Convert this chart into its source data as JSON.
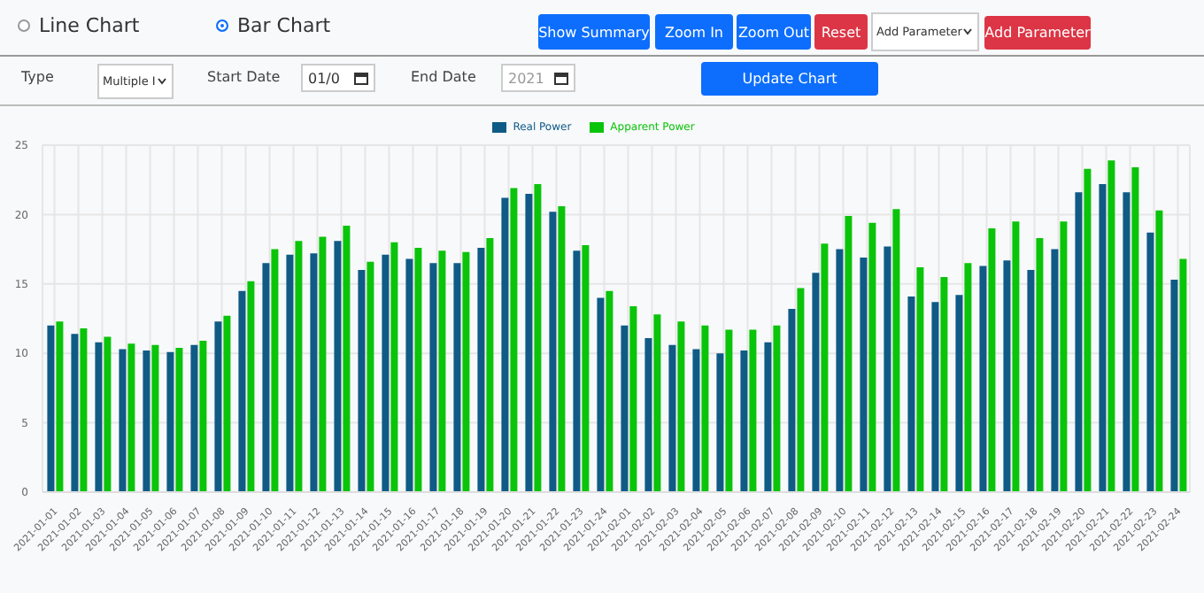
{
  "chart_data": {
    "type": "bar",
    "categories": [
      "2021-01-01",
      "2021-01-02",
      "2021-01-03",
      "2021-01-04",
      "2021-01-05",
      "2021-01-06",
      "2021-01-07",
      "2021-01-08",
      "2021-01-09",
      "2021-01-10",
      "2021-01-11",
      "2021-01-12",
      "2021-01-13",
      "2021-01-14",
      "2021-01-15",
      "2021-01-16",
      "2021-01-17",
      "2021-01-18",
      "2021-01-19",
      "2021-01-20",
      "2021-01-21",
      "2021-01-22",
      "2021-01-23",
      "2021-01-24",
      "2021-02-01",
      "2021-02-02",
      "2021-02-03",
      "2021-02-04",
      "2021-02-05",
      "2021-02-06",
      "2021-02-07",
      "2021-02-08",
      "2021-02-09",
      "2021-02-10",
      "2021-02-11",
      "2021-02-12",
      "2021-02-13",
      "2021-02-14",
      "2021-02-15",
      "2021-02-16",
      "2021-02-17",
      "2021-02-18",
      "2021-02-19",
      "2021-02-20",
      "2021-02-21",
      "2021-02-22",
      "2021-02-23",
      "2021-02-24"
    ],
    "series": [
      {
        "name": "Real Power",
        "color": "#0f5b86",
        "values": [
          12.0,
          11.4,
          10.8,
          10.3,
          10.2,
          10.1,
          10.6,
          12.3,
          14.5,
          16.5,
          17.1,
          17.2,
          18.1,
          16.0,
          17.1,
          16.8,
          16.5,
          16.5,
          17.6,
          21.2,
          21.5,
          20.2,
          17.4,
          14.0,
          12.0,
          11.1,
          10.6,
          10.3,
          10.0,
          10.2,
          10.8,
          13.2,
          15.8,
          17.5,
          16.9,
          17.7,
          14.1,
          13.7,
          14.2,
          16.3,
          16.7,
          16.0,
          17.5,
          21.6,
          22.2,
          21.6,
          18.7,
          15.3
        ]
      },
      {
        "name": "Apparent Power",
        "color": "#0ac40a",
        "values": [
          12.3,
          11.8,
          11.2,
          10.7,
          10.6,
          10.4,
          10.9,
          12.7,
          15.2,
          17.5,
          18.1,
          18.4,
          19.2,
          16.6,
          18.0,
          17.6,
          17.4,
          17.3,
          18.3,
          21.9,
          22.2,
          20.6,
          17.8,
          14.5,
          13.4,
          12.8,
          12.3,
          12.0,
          11.7,
          11.7,
          12.0,
          14.7,
          17.9,
          19.9,
          19.4,
          20.4,
          16.2,
          15.5,
          16.5,
          19.0,
          19.5,
          18.3,
          19.5,
          23.3,
          23.9,
          23.4,
          20.3,
          16.8
        ]
      }
    ],
    "ylim": [
      0,
      25
    ],
    "yticks": [
      0,
      5,
      10,
      15,
      20,
      25
    ],
    "grid": true,
    "legend": "top",
    "annotations": [
      "Line Chart",
      "Bar Chart",
      "Show Summary",
      "Zoom In",
      "Zoom Out",
      "Reset",
      "Add Parameter",
      "Add Parameter",
      "Type",
      "Multiple I",
      "Start Date",
      "01/0",
      "End Date",
      "2021",
      "Update Chart"
    ]
  }
}
